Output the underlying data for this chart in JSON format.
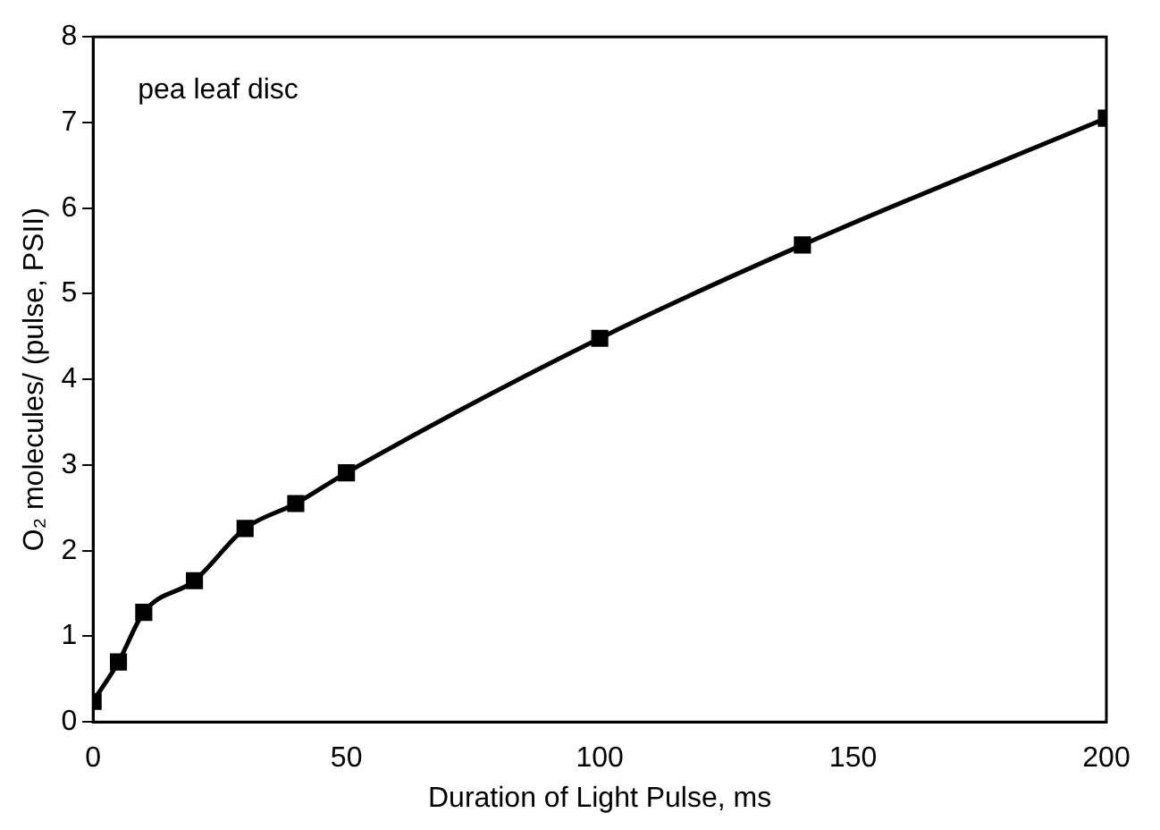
{
  "chart_data": {
    "type": "line",
    "xlabel": "Duration of Light Pulse, ms",
    "ylabel": "O₂ molecules/ (pulse, PSII)",
    "annotations": [
      "pea leaf disc"
    ],
    "x": [
      0,
      5,
      10,
      20,
      30,
      40,
      50,
      100,
      140,
      200
    ],
    "series": [
      {
        "color": "#000000",
        "values": [
          0.24,
          0.7,
          1.28,
          1.65,
          2.26,
          2.55,
          2.91,
          4.48,
          5.57,
          7.05
        ]
      }
    ],
    "xlim": [
      0,
      200
    ],
    "xticks": [
      0,
      50,
      100,
      150,
      200
    ],
    "ylim": [
      0,
      8
    ],
    "yticks": [
      0,
      1,
      2,
      3,
      4,
      5,
      6,
      7,
      8
    ],
    "grid": false,
    "legend": false,
    "marker": "square",
    "line_style": "solid"
  }
}
